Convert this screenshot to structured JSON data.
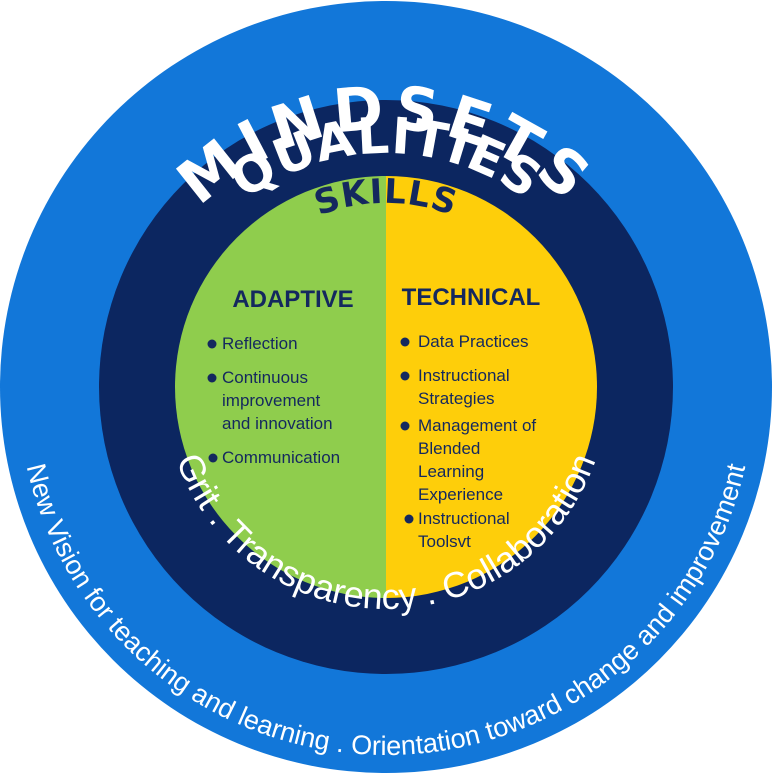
{
  "diagram": {
    "outer_label": "MINDSETS",
    "middle_label": "QUALITIES",
    "inner_label": "SKILLS",
    "outer_ring_text": "New Vision for teaching and learning . Orientation toward change and improvement",
    "middle_ring_text": "Grit . Transparency . Collaboration",
    "adaptive": {
      "title": "ADAPTIVE",
      "items": [
        [
          "Reflection"
        ],
        [
          "Continuous",
          "improvement",
          "and innovation"
        ],
        [
          "Communication"
        ]
      ]
    },
    "technical": {
      "title": "TECHNICAL",
      "items": [
        [
          "Data Practices"
        ],
        [
          "Instructional",
          "Strategies"
        ],
        [
          "Management of",
          "Blended",
          "Learning",
          "Experience"
        ],
        [
          "Instructional",
          "Toolsvt"
        ]
      ]
    }
  },
  "colors": {
    "outer_ring": "#1277d9",
    "middle_ring": "#0c2660",
    "left_half": "#8fcd4d",
    "right_half": "#fece0a",
    "text_dark": "#14285e",
    "text_light": "#ffffff"
  }
}
